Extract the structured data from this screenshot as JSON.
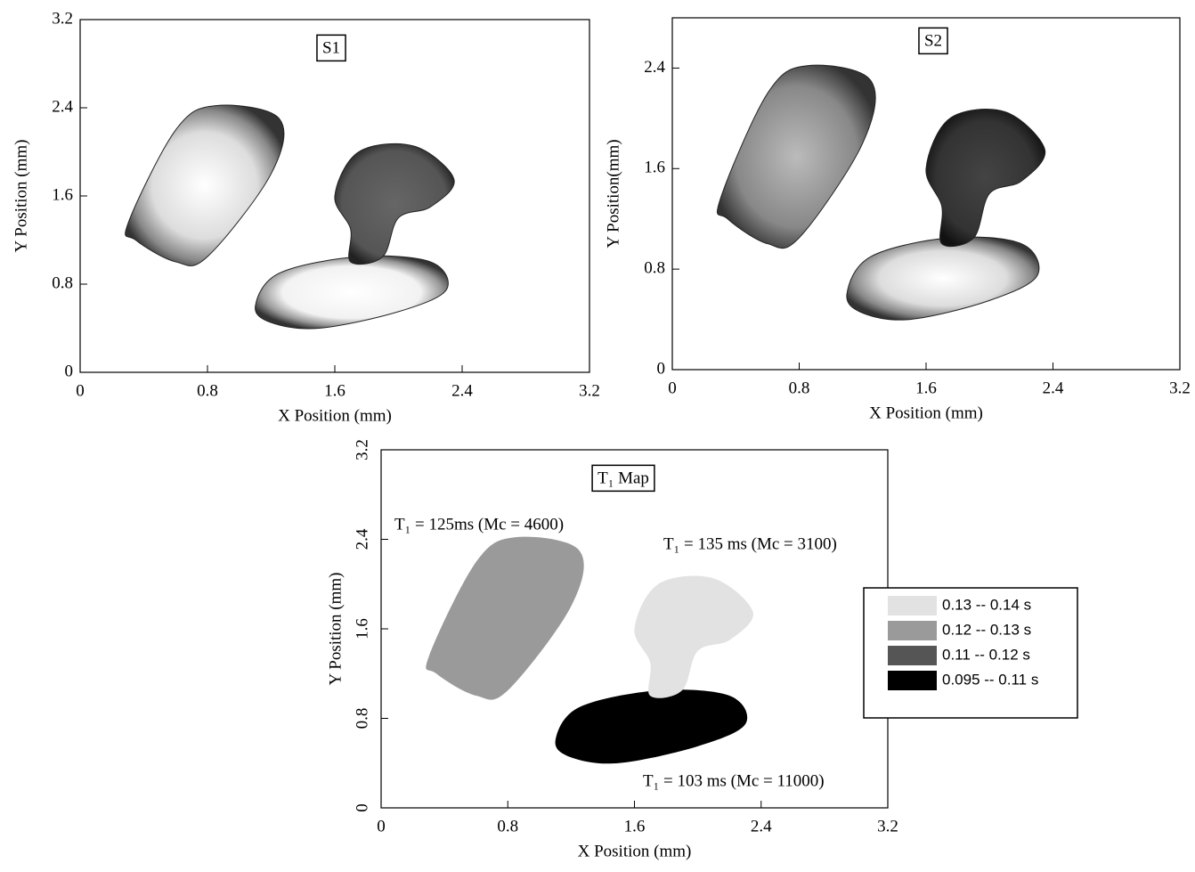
{
  "chart_data": [
    {
      "type": "contour",
      "title": "S1",
      "xlabel": "X Position (mm)",
      "ylabel": "Y Position (mm)",
      "xlim": [
        0,
        3.2
      ],
      "ylim": [
        0,
        3.2
      ],
      "xticks": [
        0,
        0.8,
        1.6,
        2.4,
        3.2
      ],
      "yticks": [
        0,
        0.8,
        1.6,
        2.4,
        3.2
      ]
    },
    {
      "type": "contour",
      "title": "S2",
      "xlabel": "X  Position (mm)",
      "ylabel": "Y Position(mm)",
      "xlim": [
        0,
        3.2
      ],
      "ylim": [
        0,
        2.8
      ],
      "xticks": [
        0,
        0.8,
        1.6,
        2.4,
        3.2
      ],
      "yticks": [
        0,
        0.8,
        1.6,
        2.4
      ]
    },
    {
      "type": "map",
      "title": "T₁ Map",
      "xlabel": "X Position (mm)",
      "ylabel": "Y Position (mm)",
      "xlim": [
        0,
        3.2
      ],
      "ylim": [
        0,
        3.2
      ],
      "xticks": [
        0,
        0.8,
        1.6,
        2.4,
        3.2
      ],
      "yticks": [
        0,
        0.8,
        1.6,
        2.4,
        3.2
      ],
      "annotations": [
        "T₁ = 125ms (Mc = 4600)",
        "T₁ = 135 ms (Mc = 3100)",
        "T₁ = 103 ms (Mc = 11000)"
      ],
      "legend": [
        {
          "label": "0.13  --  0.14 s",
          "color": "#e2e2e2"
        },
        {
          "label": "0.12  --  0.13 s",
          "color": "#9a9a9a"
        },
        {
          "label": "0.11  --  0.12 s",
          "color": "#555555"
        },
        {
          "label": "0.095  --  0.11 s",
          "color": "#000000"
        }
      ]
    }
  ]
}
